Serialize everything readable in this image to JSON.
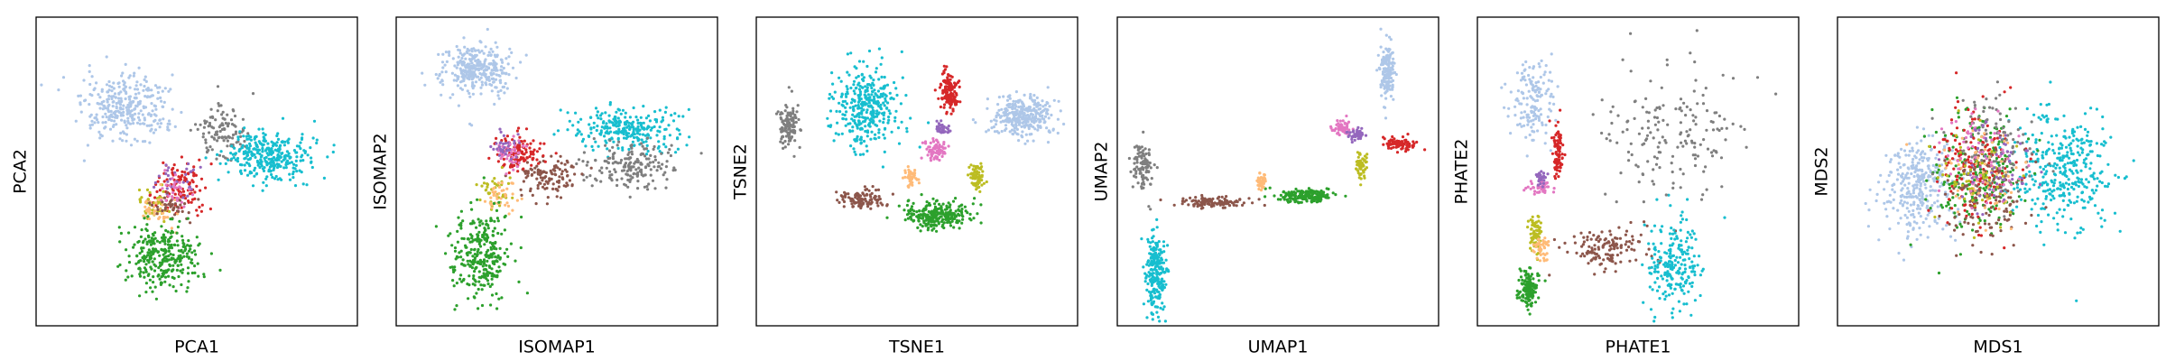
{
  "chart_data": [
    {
      "type": "scatter",
      "title": "",
      "xlabel": "PCA1",
      "ylabel": "PCA2",
      "ticks": "none",
      "clusters": [
        {
          "color": "#aec7e8",
          "center": [
            0.28,
            0.7
          ],
          "spread": [
            0.12,
            0.1
          ],
          "points": 320
        },
        {
          "color": "#7f7f7f",
          "center": [
            0.58,
            0.63
          ],
          "spread": [
            0.07,
            0.08
          ],
          "points": 110
        },
        {
          "color": "#17becf",
          "center": [
            0.72,
            0.55
          ],
          "spread": [
            0.12,
            0.07
          ],
          "points": 320
        },
        {
          "color": "#d62728",
          "center": [
            0.45,
            0.45
          ],
          "spread": [
            0.07,
            0.08
          ],
          "points": 120
        },
        {
          "color": "#9467bd",
          "center": [
            0.46,
            0.47
          ],
          "spread": [
            0.06,
            0.06
          ],
          "points": 30
        },
        {
          "color": "#bcbd22",
          "center": [
            0.37,
            0.4
          ],
          "spread": [
            0.05,
            0.05
          ],
          "points": 40
        },
        {
          "color": "#ffbb78",
          "center": [
            0.38,
            0.38
          ],
          "spread": [
            0.05,
            0.05
          ],
          "points": 40
        },
        {
          "color": "#e377c2",
          "center": [
            0.44,
            0.44
          ],
          "spread": [
            0.05,
            0.05
          ],
          "points": 30
        },
        {
          "color": "#8c564b",
          "center": [
            0.42,
            0.39
          ],
          "spread": [
            0.05,
            0.04
          ],
          "points": 40
        },
        {
          "color": "#2ca02c",
          "center": [
            0.39,
            0.23
          ],
          "spread": [
            0.1,
            0.1
          ],
          "points": 300
        }
      ]
    },
    {
      "type": "scatter",
      "title": "",
      "xlabel": "ISOMAP1",
      "ylabel": "ISOMAP2",
      "ticks": "none",
      "clusters": [
        {
          "color": "#aec7e8",
          "center": [
            0.25,
            0.83
          ],
          "spread": [
            0.1,
            0.08
          ],
          "points": 320
        },
        {
          "color": "#17becf",
          "center": [
            0.72,
            0.64
          ],
          "spread": [
            0.14,
            0.06
          ],
          "points": 260
        },
        {
          "color": "#7f7f7f",
          "center": [
            0.73,
            0.52
          ],
          "spread": [
            0.12,
            0.07
          ],
          "points": 180
        },
        {
          "color": "#8c564b",
          "center": [
            0.48,
            0.48
          ],
          "spread": [
            0.1,
            0.06
          ],
          "points": 120
        },
        {
          "color": "#d62728",
          "center": [
            0.38,
            0.56
          ],
          "spread": [
            0.07,
            0.05
          ],
          "points": 120
        },
        {
          "color": "#e377c2",
          "center": [
            0.36,
            0.56
          ],
          "spread": [
            0.05,
            0.04
          ],
          "points": 40
        },
        {
          "color": "#9467bd",
          "center": [
            0.34,
            0.58
          ],
          "spread": [
            0.04,
            0.04
          ],
          "points": 30
        },
        {
          "color": "#bcbd22",
          "center": [
            0.31,
            0.44
          ],
          "spread": [
            0.05,
            0.05
          ],
          "points": 40
        },
        {
          "color": "#ffbb78",
          "center": [
            0.33,
            0.42
          ],
          "spread": [
            0.05,
            0.05
          ],
          "points": 40
        },
        {
          "color": "#2ca02c",
          "center": [
            0.26,
            0.23
          ],
          "spread": [
            0.08,
            0.12
          ],
          "points": 300
        }
      ]
    },
    {
      "type": "scatter",
      "title": "",
      "xlabel": "TSNE1",
      "ylabel": "TSNE2",
      "ticks": "none",
      "clusters": [
        {
          "color": "#7f7f7f",
          "center": [
            0.1,
            0.65
          ],
          "spread": [
            0.025,
            0.07
          ],
          "points": 120
        },
        {
          "color": "#17becf",
          "center": [
            0.34,
            0.7
          ],
          "spread": [
            0.09,
            0.12
          ],
          "points": 340
        },
        {
          "color": "#8c564b",
          "center": [
            0.34,
            0.41
          ],
          "spread": [
            0.07,
            0.03
          ],
          "points": 100
        },
        {
          "color": "#2ca02c",
          "center": [
            0.56,
            0.36
          ],
          "spread": [
            0.09,
            0.04
          ],
          "points": 260
        },
        {
          "color": "#ffbb78",
          "center": [
            0.48,
            0.48
          ],
          "spread": [
            0.02,
            0.03
          ],
          "points": 50
        },
        {
          "color": "#bcbd22",
          "center": [
            0.69,
            0.48
          ],
          "spread": [
            0.025,
            0.04
          ],
          "points": 70
        },
        {
          "color": "#e377c2",
          "center": [
            0.56,
            0.57
          ],
          "spread": [
            0.03,
            0.03
          ],
          "points": 70
        },
        {
          "color": "#9467bd",
          "center": [
            0.58,
            0.64
          ],
          "spread": [
            0.02,
            0.02
          ],
          "points": 40
        },
        {
          "color": "#d62728",
          "center": [
            0.6,
            0.76
          ],
          "spread": [
            0.025,
            0.06
          ],
          "points": 140
        },
        {
          "color": "#aec7e8",
          "center": [
            0.83,
            0.68
          ],
          "spread": [
            0.09,
            0.06
          ],
          "points": 320
        }
      ]
    },
    {
      "type": "scatter",
      "title": "",
      "xlabel": "UMAP1",
      "ylabel": "UMAP2",
      "ticks": "none",
      "clusters": [
        {
          "color": "#aec7e8",
          "center": [
            0.84,
            0.83
          ],
          "spread": [
            0.02,
            0.08
          ],
          "points": 160
        },
        {
          "color": "#e377c2",
          "center": [
            0.7,
            0.64
          ],
          "spread": [
            0.03,
            0.02
          ],
          "points": 60
        },
        {
          "color": "#d62728",
          "center": [
            0.88,
            0.59
          ],
          "spread": [
            0.05,
            0.02
          ],
          "points": 90
        },
        {
          "color": "#9467bd",
          "center": [
            0.74,
            0.62
          ],
          "spread": [
            0.02,
            0.015
          ],
          "points": 40
        },
        {
          "color": "#bcbd22",
          "center": [
            0.76,
            0.52
          ],
          "spread": [
            0.015,
            0.04
          ],
          "points": 60
        },
        {
          "color": "#2ca02c",
          "center": [
            0.58,
            0.42
          ],
          "spread": [
            0.08,
            0.02
          ],
          "points": 180
        },
        {
          "color": "#ffbb78",
          "center": [
            0.45,
            0.47
          ],
          "spread": [
            0.015,
            0.03
          ],
          "points": 40
        },
        {
          "color": "#8c564b",
          "center": [
            0.3,
            0.4
          ],
          "spread": [
            0.1,
            0.015
          ],
          "points": 110
        },
        {
          "color": "#7f7f7f",
          "center": [
            0.08,
            0.52
          ],
          "spread": [
            0.03,
            0.07
          ],
          "points": 100
        },
        {
          "color": "#17becf",
          "center": [
            0.12,
            0.18
          ],
          "spread": [
            0.03,
            0.13
          ],
          "points": 240
        }
      ]
    },
    {
      "type": "scatter",
      "title": "",
      "xlabel": "PHATE1",
      "ylabel": "PHATE2",
      "ticks": "none",
      "clusters": [
        {
          "color": "#aec7e8",
          "center": [
            0.17,
            0.73
          ],
          "spread": [
            0.06,
            0.12
          ],
          "points": 150
        },
        {
          "color": "#d62728",
          "center": [
            0.25,
            0.56
          ],
          "spread": [
            0.015,
            0.07
          ],
          "points": 90
        },
        {
          "color": "#e377c2",
          "center": [
            0.2,
            0.45
          ],
          "spread": [
            0.03,
            0.02
          ],
          "points": 50
        },
        {
          "color": "#9467bd",
          "center": [
            0.2,
            0.48
          ],
          "spread": [
            0.02,
            0.02
          ],
          "points": 30
        },
        {
          "color": "#bcbd22",
          "center": [
            0.18,
            0.3
          ],
          "spread": [
            0.02,
            0.06
          ],
          "points": 70
        },
        {
          "color": "#2ca02c",
          "center": [
            0.16,
            0.12
          ],
          "spread": [
            0.03,
            0.06
          ],
          "points": 140
        },
        {
          "color": "#ffbb78",
          "center": [
            0.2,
            0.25
          ],
          "spread": [
            0.02,
            0.04
          ],
          "points": 40
        },
        {
          "color": "#8c564b",
          "center": [
            0.4,
            0.25
          ],
          "spread": [
            0.12,
            0.06
          ],
          "points": 140
        },
        {
          "color": "#17becf",
          "center": [
            0.6,
            0.2
          ],
          "spread": [
            0.08,
            0.13
          ],
          "points": 220
        },
        {
          "color": "#7f7f7f",
          "center": [
            0.6,
            0.62
          ],
          "spread": [
            0.2,
            0.2
          ],
          "points": 170
        }
      ]
    },
    {
      "type": "scatter",
      "title": "",
      "xlabel": "MDS1",
      "ylabel": "MDS2",
      "ticks": "none",
      "clusters": [
        {
          "color": "#aec7e8",
          "center": [
            0.25,
            0.45
          ],
          "spread": [
            0.1,
            0.14
          ],
          "points": 320
        },
        {
          "color": "#17becf",
          "center": [
            0.7,
            0.5
          ],
          "spread": [
            0.13,
            0.17
          ],
          "points": 360
        },
        {
          "color": "#2ca02c",
          "center": [
            0.43,
            0.5
          ],
          "spread": [
            0.13,
            0.17
          ],
          "points": 220
        },
        {
          "color": "#d62728",
          "center": [
            0.43,
            0.52
          ],
          "spread": [
            0.12,
            0.17
          ],
          "points": 160
        },
        {
          "color": "#7f7f7f",
          "center": [
            0.48,
            0.58
          ],
          "spread": [
            0.12,
            0.15
          ],
          "points": 120
        },
        {
          "color": "#8c564b",
          "center": [
            0.47,
            0.42
          ],
          "spread": [
            0.12,
            0.15
          ],
          "points": 120
        },
        {
          "color": "#ffbb78",
          "center": [
            0.45,
            0.5
          ],
          "spread": [
            0.1,
            0.14
          ],
          "points": 60
        },
        {
          "color": "#bcbd22",
          "center": [
            0.43,
            0.48
          ],
          "spread": [
            0.12,
            0.15
          ],
          "points": 60
        },
        {
          "color": "#e377c2",
          "center": [
            0.46,
            0.55
          ],
          "spread": [
            0.11,
            0.15
          ],
          "points": 60
        },
        {
          "color": "#9467bd",
          "center": [
            0.48,
            0.52
          ],
          "spread": [
            0.11,
            0.15
          ],
          "points": 50
        }
      ]
    }
  ]
}
